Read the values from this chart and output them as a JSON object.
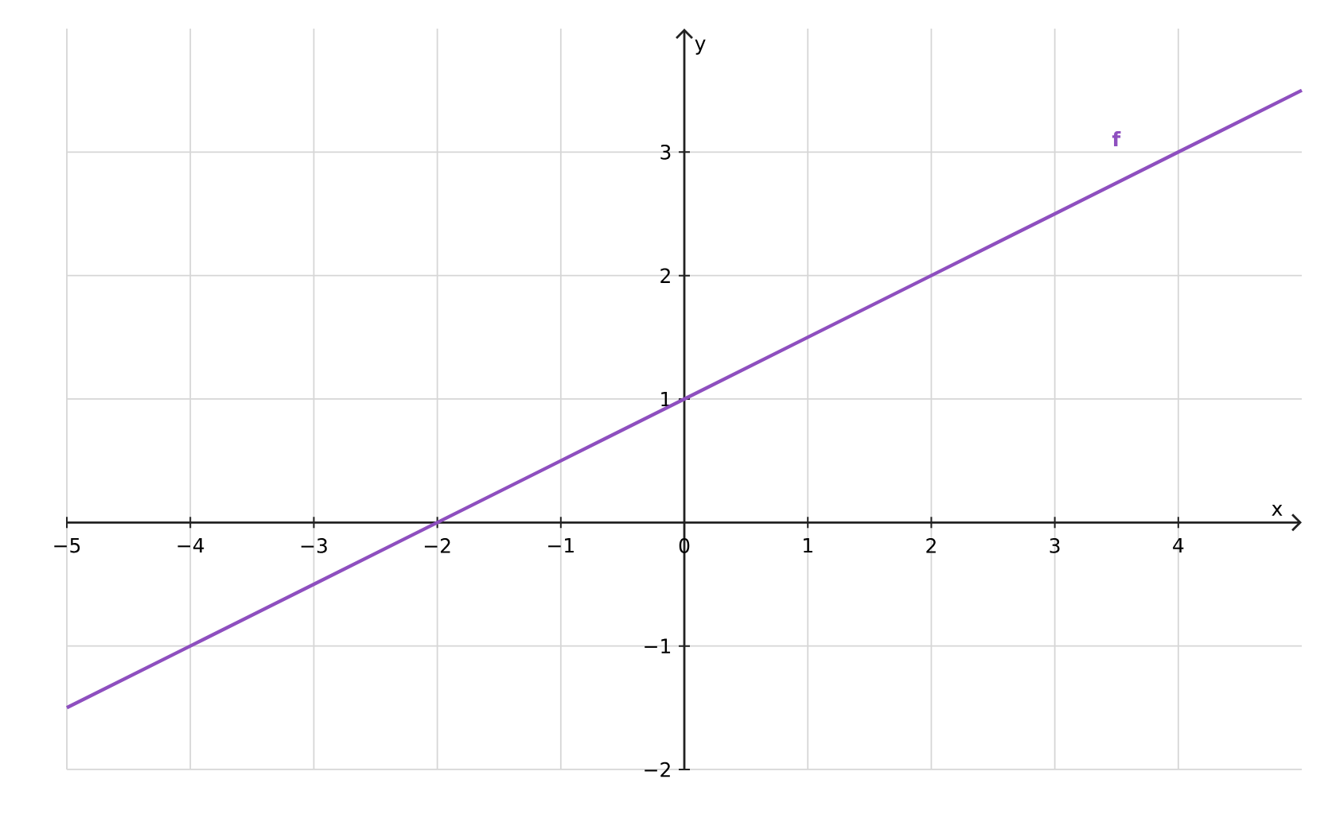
{
  "chart_data": {
    "type": "line",
    "xlabel": "x",
    "ylabel": "y",
    "x": [
      -5,
      -4,
      -3,
      -2,
      -1,
      0,
      1,
      2,
      3,
      4,
      5
    ],
    "series": [
      {
        "name": "f",
        "color": "#8e4fbf",
        "values": [
          -1.5,
          -1,
          -0.5,
          0,
          0.5,
          1,
          1.5,
          2,
          2.5,
          3,
          3.5
        ]
      }
    ],
    "xlim": [
      -5,
      5
    ],
    "ylim": [
      -2,
      4
    ],
    "xticks": [
      {
        "value": -5,
        "label": "−5"
      },
      {
        "value": -4,
        "label": "−4"
      },
      {
        "value": -3,
        "label": "−3"
      },
      {
        "value": -2,
        "label": "−2"
      },
      {
        "value": -1,
        "label": "−1"
      },
      0,
      1,
      2,
      3,
      4
    ],
    "yticks": [
      {
        "value": -2,
        "label": "−2"
      },
      {
        "value": -1,
        "label": "−1"
      },
      1,
      2,
      3
    ],
    "grid": true,
    "marker": "none",
    "line_style": "solid"
  }
}
